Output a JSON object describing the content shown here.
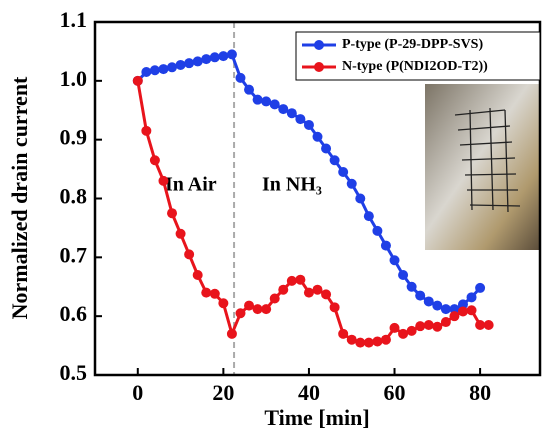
{
  "chart_data": {
    "type": "line",
    "x_label": "Time [min]",
    "y_label": "Normalized drain current",
    "x": [
      0,
      2,
      4,
      6,
      8,
      10,
      12,
      14,
      16,
      18,
      20,
      22,
      24,
      26,
      28,
      30,
      32,
      34,
      36,
      38,
      40,
      42,
      44,
      46,
      48,
      50,
      52,
      54,
      56,
      58,
      60,
      62,
      64,
      66,
      68,
      70,
      72,
      74,
      76,
      78,
      80,
      82
    ],
    "series": [
      {
        "name": "P-type (P-29-DPP-SVS)",
        "color": "#1f3fe6",
        "values": [
          1.0,
          1.015,
          1.018,
          1.02,
          1.023,
          1.027,
          1.03,
          1.033,
          1.037,
          1.04,
          1.042,
          1.045,
          1.005,
          0.985,
          0.968,
          0.965,
          0.96,
          0.952,
          0.945,
          0.935,
          0.925,
          0.905,
          0.885,
          0.865,
          0.845,
          0.825,
          0.8,
          0.77,
          0.745,
          0.72,
          0.695,
          0.67,
          0.65,
          0.635,
          0.625,
          0.618,
          0.612,
          0.612,
          0.62,
          0.632,
          0.648,
          null
        ]
      },
      {
        "name": "N-type (P(NDI2OD-T2))",
        "color": "#e8141c",
        "values": [
          1.0,
          0.915,
          0.865,
          0.83,
          0.775,
          0.74,
          0.705,
          0.67,
          0.64,
          0.638,
          0.622,
          0.57,
          0.605,
          0.618,
          0.612,
          0.612,
          0.63,
          0.645,
          0.66,
          0.662,
          0.64,
          0.645,
          0.637,
          0.615,
          0.57,
          0.56,
          0.555,
          0.555,
          0.557,
          0.56,
          0.58,
          0.57,
          0.575,
          0.583,
          0.585,
          0.582,
          0.59,
          0.6,
          0.608,
          0.61,
          0.585,
          0.585
        ]
      }
    ],
    "xlim": [
      -10,
      94
    ],
    "ylim": [
      0.5,
      1.1
    ],
    "xticks": [
      0,
      20,
      40,
      60,
      80
    ],
    "yticks": [
      0.5,
      0.6,
      0.7,
      0.8,
      0.9,
      {
        "value": 1,
        "label": "1.0"
      },
      1.1
    ],
    "divider_x": 22.5,
    "annotations": [
      "In Air",
      "In NH₃"
    ],
    "legend": "upper right"
  }
}
